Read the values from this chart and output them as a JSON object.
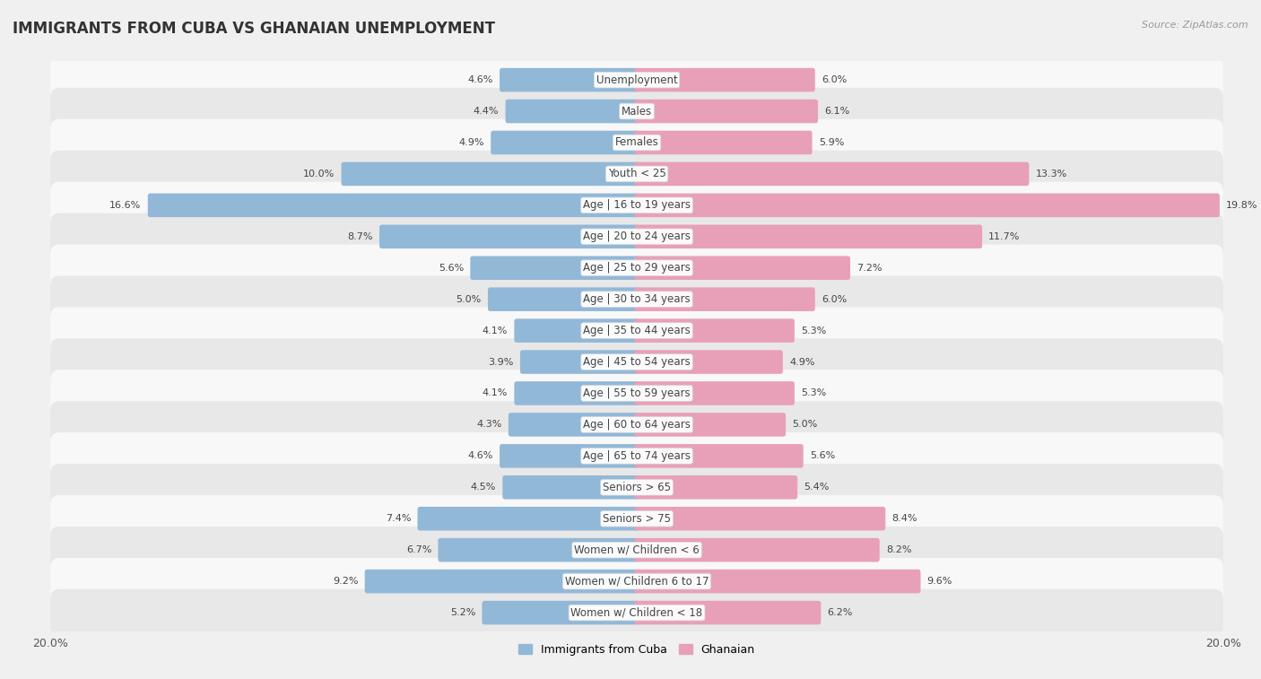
{
  "title": "IMMIGRANTS FROM CUBA VS GHANAIAN UNEMPLOYMENT",
  "source": "Source: ZipAtlas.com",
  "categories": [
    "Unemployment",
    "Males",
    "Females",
    "Youth < 25",
    "Age | 16 to 19 years",
    "Age | 20 to 24 years",
    "Age | 25 to 29 years",
    "Age | 30 to 34 years",
    "Age | 35 to 44 years",
    "Age | 45 to 54 years",
    "Age | 55 to 59 years",
    "Age | 60 to 64 years",
    "Age | 65 to 74 years",
    "Seniors > 65",
    "Seniors > 75",
    "Women w/ Children < 6",
    "Women w/ Children 6 to 17",
    "Women w/ Children < 18"
  ],
  "cuba_values": [
    4.6,
    4.4,
    4.9,
    10.0,
    16.6,
    8.7,
    5.6,
    5.0,
    4.1,
    3.9,
    4.1,
    4.3,
    4.6,
    4.5,
    7.4,
    6.7,
    9.2,
    5.2
  ],
  "ghana_values": [
    6.0,
    6.1,
    5.9,
    13.3,
    19.8,
    11.7,
    7.2,
    6.0,
    5.3,
    4.9,
    5.3,
    5.0,
    5.6,
    5.4,
    8.4,
    8.2,
    9.6,
    6.2
  ],
  "cuba_color": "#92b8d8",
  "ghana_color": "#e8a0b8",
  "cuba_label": "Immigrants from Cuba",
  "ghana_label": "Ghanaian",
  "axis_limit": 20.0,
  "bg_color": "#f0f0f0",
  "row_color_odd": "#e8e8e8",
  "row_color_even": "#f8f8f8",
  "title_fontsize": 12,
  "label_fontsize": 8.5,
  "value_fontsize": 8,
  "bar_height": 0.6
}
